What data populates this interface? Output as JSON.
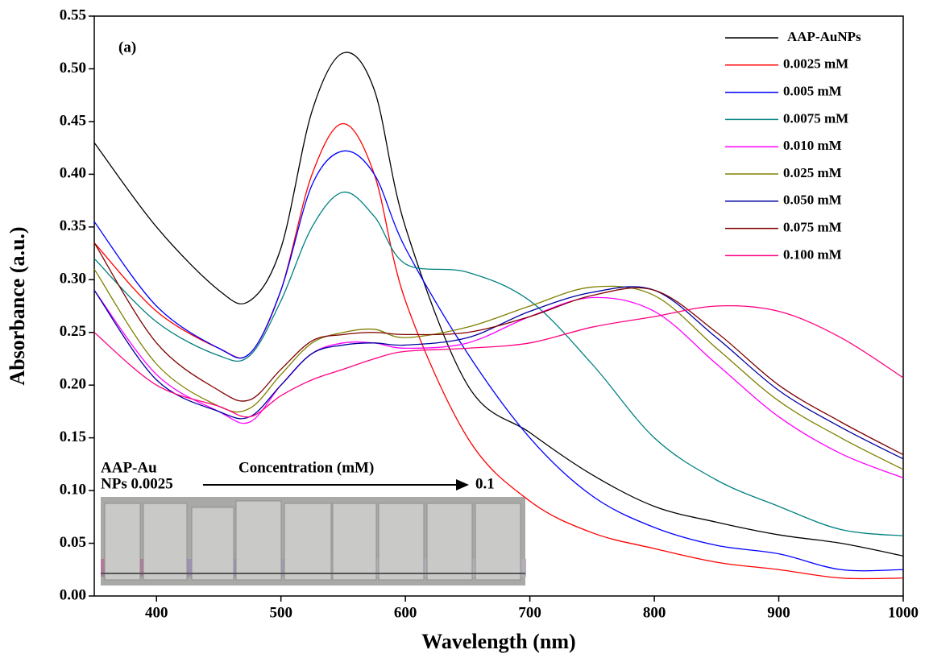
{
  "chart_data": {
    "type": "line",
    "x_label": "Wavelength (nm)",
    "y_label": "Absorbance (a.u.)",
    "annotations": [
      "(a)",
      "AAP-Au",
      "NPs 0.0025",
      "Concentration (mM)",
      "0.1"
    ],
    "x": [
      350,
      400,
      450,
      475,
      500,
      525,
      550,
      575,
      600,
      650,
      700,
      750,
      800,
      850,
      900,
      950,
      1000
    ],
    "series": [
      {
        "name": "AAP-AuNPs",
        "color": "#000000",
        "values": [
          0.43,
          0.35,
          0.29,
          0.28,
          0.33,
          0.46,
          0.515,
          0.48,
          0.35,
          0.2,
          0.155,
          0.115,
          0.085,
          0.07,
          0.058,
          0.05,
          0.038
        ]
      },
      {
        "name": "0.0025 mM",
        "color": "#ff0000",
        "values": [
          0.335,
          0.27,
          0.235,
          0.23,
          0.29,
          0.4,
          0.448,
          0.4,
          0.28,
          0.15,
          0.09,
          0.06,
          0.045,
          0.032,
          0.025,
          0.017,
          0.017
        ]
      },
      {
        "name": "0.005 mM",
        "color": "#0000ff",
        "values": [
          0.355,
          0.275,
          0.235,
          0.23,
          0.29,
          0.39,
          0.422,
          0.4,
          0.33,
          0.23,
          0.15,
          0.095,
          0.065,
          0.048,
          0.04,
          0.025,
          0.025
        ]
      },
      {
        "name": "0.0075 mM",
        "color": "#008080",
        "values": [
          0.32,
          0.26,
          0.228,
          0.228,
          0.28,
          0.35,
          0.383,
          0.36,
          0.315,
          0.307,
          0.28,
          0.22,
          0.15,
          0.11,
          0.085,
          0.063,
          0.057
        ]
      },
      {
        "name": "0.010 mM",
        "color": "#ff00ff",
        "values": [
          0.29,
          0.21,
          0.175,
          0.165,
          0.2,
          0.23,
          0.24,
          0.24,
          0.235,
          0.24,
          0.265,
          0.283,
          0.27,
          0.22,
          0.17,
          0.135,
          0.112
        ]
      },
      {
        "name": "0.025 mM",
        "color": "#808000",
        "values": [
          0.31,
          0.22,
          0.18,
          0.178,
          0.21,
          0.24,
          0.25,
          0.253,
          0.245,
          0.255,
          0.275,
          0.293,
          0.285,
          0.235,
          0.185,
          0.15,
          0.12
        ]
      },
      {
        "name": "0.050 mM",
        "color": "#0000a0",
        "values": [
          0.29,
          0.205,
          0.175,
          0.17,
          0.2,
          0.23,
          0.238,
          0.24,
          0.238,
          0.245,
          0.27,
          0.288,
          0.29,
          0.245,
          0.195,
          0.16,
          0.13
        ]
      },
      {
        "name": "0.075 mM",
        "color": "#800000",
        "values": [
          0.335,
          0.24,
          0.195,
          0.186,
          0.215,
          0.242,
          0.248,
          0.25,
          0.248,
          0.25,
          0.265,
          0.285,
          0.29,
          0.25,
          0.2,
          0.165,
          0.134
        ]
      },
      {
        "name": "0.100 mM",
        "color": "#ff0080",
        "values": [
          0.25,
          0.2,
          0.18,
          0.17,
          0.19,
          0.205,
          0.215,
          0.225,
          0.232,
          0.235,
          0.24,
          0.255,
          0.265,
          0.275,
          0.27,
          0.245,
          0.207
        ]
      }
    ],
    "xlim": [
      350,
      1000
    ],
    "xticks": [
      400,
      500,
      600,
      700,
      800,
      900,
      1000
    ],
    "ylim": [
      0,
      0.55
    ],
    "yticks": [
      {
        "value": 0,
        "label": "0.00"
      },
      0.05,
      {
        "value": 0.1,
        "label": "0.10"
      },
      0.15,
      {
        "value": 0.2,
        "label": "0.20"
      },
      0.25,
      {
        "value": 0.3,
        "label": "0.30"
      },
      0.35,
      {
        "value": 0.4,
        "label": "0.40"
      },
      0.45,
      {
        "value": 0.5,
        "label": "0.50"
      },
      0.55
    ],
    "legend": "top-right",
    "grid": false
  }
}
